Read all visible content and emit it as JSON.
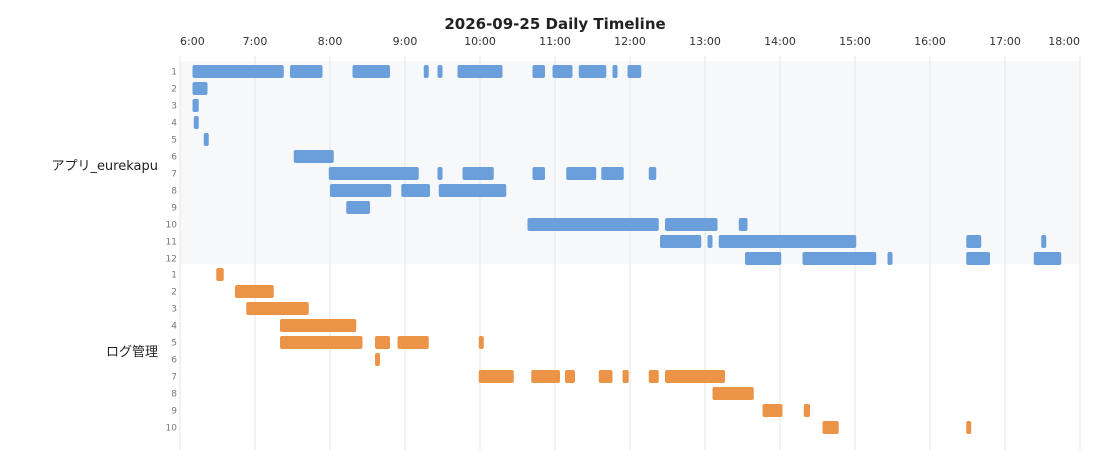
{
  "chart_data": {
    "type": "timeline",
    "title": "2026-09-25 Daily Timeline",
    "x_range": [
      "6:00",
      "18:00"
    ],
    "x_ticks": [
      "6:00",
      "7:00",
      "8:00",
      "9:00",
      "10:00",
      "11:00",
      "12:00",
      "13:00",
      "14:00",
      "15:00",
      "16:00",
      "17:00",
      "18:00"
    ],
    "grid": true,
    "groups": [
      {
        "name": "アプリ_eurekapu",
        "color": "#6a9fdc",
        "background": "#f6f8fa",
        "rows": [
          {
            "label": "1",
            "intervals": [
              [
                "6:10",
                "7:23"
              ],
              [
                "7:28",
                "7:54"
              ],
              [
                "8:18",
                "8:48"
              ],
              [
                "9:15",
                "9:19"
              ],
              [
                "9:26",
                "9:30"
              ],
              [
                "9:42",
                "10:18"
              ],
              [
                "10:42",
                "10:52"
              ],
              [
                "10:58",
                "11:14"
              ],
              [
                "11:19",
                "11:41"
              ],
              [
                "11:46",
                "11:50"
              ],
              [
                "11:58",
                "12:09"
              ]
            ]
          },
          {
            "label": "2",
            "intervals": [
              [
                "6:10",
                "6:22"
              ]
            ]
          },
          {
            "label": "3",
            "intervals": [
              [
                "6:10",
                "6:15"
              ]
            ]
          },
          {
            "label": "4",
            "intervals": [
              [
                "6:11",
                "6:15"
              ]
            ]
          },
          {
            "label": "5",
            "intervals": [
              [
                "6:19",
                "6:23"
              ]
            ]
          },
          {
            "label": "6",
            "intervals": [
              [
                "7:31",
                "8:03"
              ]
            ]
          },
          {
            "label": "7",
            "intervals": [
              [
                "7:59",
                "9:11"
              ],
              [
                "9:26",
                "9:30"
              ],
              [
                "9:46",
                "10:11"
              ],
              [
                "10:42",
                "10:52"
              ],
              [
                "11:09",
                "11:33"
              ],
              [
                "11:37",
                "11:55"
              ],
              [
                "12:15",
                "12:21"
              ]
            ]
          },
          {
            "label": "8",
            "intervals": [
              [
                "8:00",
                "8:49"
              ],
              [
                "8:57",
                "9:20"
              ],
              [
                "9:27",
                "10:21"
              ]
            ]
          },
          {
            "label": "9",
            "intervals": [
              [
                "8:13",
                "8:32"
              ]
            ]
          },
          {
            "label": "10",
            "intervals": [
              [
                "10:38",
                "12:23"
              ],
              [
                "12:28",
                "13:10"
              ],
              [
                "13:27",
                "13:34"
              ]
            ]
          },
          {
            "label": "11",
            "intervals": [
              [
                "12:24",
                "12:57"
              ],
              [
                "13:02",
                "13:06"
              ],
              [
                "13:11",
                "15:01"
              ],
              [
                "16:29",
                "16:41"
              ],
              [
                "17:29",
                "17:33"
              ]
            ]
          },
          {
            "label": "12",
            "intervals": [
              [
                "13:32",
                "14:01"
              ],
              [
                "14:18",
                "15:17"
              ],
              [
                "15:26",
                "15:30"
              ],
              [
                "16:29",
                "16:48"
              ],
              [
                "17:23",
                "17:45"
              ]
            ]
          }
        ]
      },
      {
        "name": "ログ管理",
        "color": "#eb9448",
        "background": "#ffffff",
        "rows": [
          {
            "label": "1",
            "intervals": [
              [
                "6:29",
                "6:35"
              ]
            ]
          },
          {
            "label": "2",
            "intervals": [
              [
                "6:44",
                "7:15"
              ]
            ]
          },
          {
            "label": "3",
            "intervals": [
              [
                "6:53",
                "7:43"
              ]
            ]
          },
          {
            "label": "4",
            "intervals": [
              [
                "7:20",
                "8:21"
              ]
            ]
          },
          {
            "label": "5",
            "intervals": [
              [
                "7:20",
                "8:26"
              ],
              [
                "8:36",
                "8:48"
              ],
              [
                "8:54",
                "9:19"
              ],
              [
                "9:59",
                "10:03"
              ]
            ]
          },
          {
            "label": "6",
            "intervals": [
              [
                "8:36",
                "8:40"
              ]
            ]
          },
          {
            "label": "7",
            "intervals": [
              [
                "9:59",
                "10:27"
              ],
              [
                "10:41",
                "11:04"
              ],
              [
                "11:08",
                "11:16"
              ],
              [
                "11:35",
                "11:46"
              ],
              [
                "11:54",
                "11:59"
              ],
              [
                "12:15",
                "12:23"
              ],
              [
                "12:28",
                "13:16"
              ]
            ]
          },
          {
            "label": "8",
            "intervals": [
              [
                "13:06",
                "13:39"
              ]
            ]
          },
          {
            "label": "9",
            "intervals": [
              [
                "13:46",
                "14:02"
              ],
              [
                "14:19",
                "14:24"
              ]
            ]
          },
          {
            "label": "10",
            "intervals": [
              [
                "14:34",
                "14:47"
              ],
              [
                "16:29",
                "16:33"
              ]
            ]
          }
        ]
      }
    ]
  }
}
